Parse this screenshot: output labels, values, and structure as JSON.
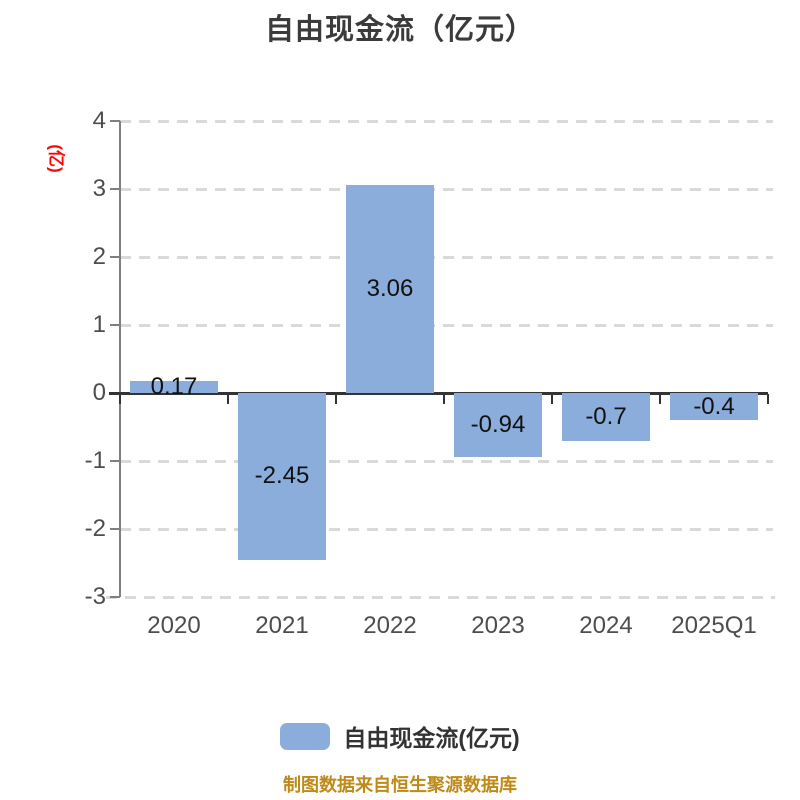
{
  "title": "自由现金流（亿元）",
  "source_note": "制图数据来自恒生聚源数据库",
  "chart_data": {
    "type": "bar",
    "title": "自由现金流（亿元）",
    "ylabel": "(亿)",
    "categories": [
      "2020",
      "2021",
      "2022",
      "2023",
      "2024",
      "2025Q1"
    ],
    "values": [
      0.17,
      -2.45,
      3.06,
      -0.94,
      -0.7,
      -0.4
    ],
    "value_labels": [
      "0.17",
      "-2.45",
      "3.06",
      "-0.94",
      "-0.7",
      "-0.4"
    ],
    "yticks": [
      4,
      3,
      2,
      1,
      0,
      -1,
      -2,
      -3
    ],
    "ylim": [
      -3,
      4
    ],
    "grid": "dashed-horizontal",
    "legend_position": "bottom",
    "legend": [
      {
        "label": "自由现金流(亿元)",
        "color": "#8badDC"
      }
    ],
    "colors": {
      "bar": "#8badDC",
      "grid": "#d9d9d9",
      "axis": "#7f7f7f",
      "zero_line": "#333333",
      "title": "#3b3b3b",
      "ylabel": "#fe0606",
      "tick_label": "#4d4d4d",
      "source_note": "#be8a19"
    }
  }
}
